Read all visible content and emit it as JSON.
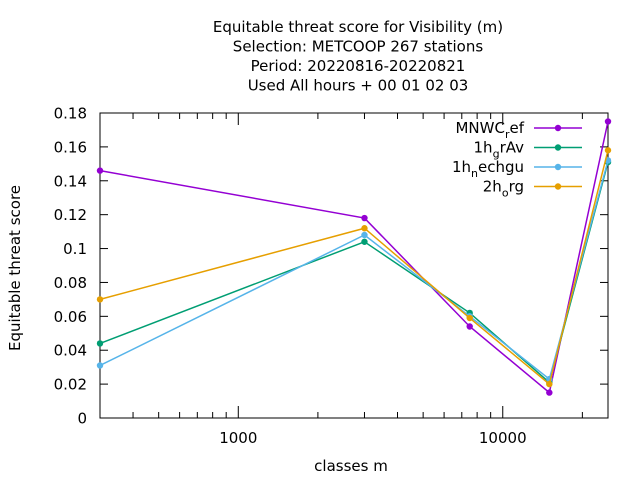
{
  "chart_data": {
    "type": "line",
    "title_lines": [
      "Equitable threat score  for Visibility (m)",
      "Selection: METCOOP    267 stations",
      "Period: 20220816-20220821",
      "Used  All hours  + 00 01 02 03"
    ],
    "xlabel": "classes m",
    "ylabel": "Equitable threat score",
    "x_scale": "log",
    "xlim": [
      300,
      25000
    ],
    "ylim": [
      0,
      0.18
    ],
    "x_ticks": [
      {
        "value": 1000,
        "label": "1000"
      },
      {
        "value": 10000,
        "label": "10000"
      }
    ],
    "y_ticks": [
      {
        "value": 0,
        "label": "0"
      },
      {
        "value": 0.02,
        "label": "0.02"
      },
      {
        "value": 0.04,
        "label": "0.04"
      },
      {
        "value": 0.06,
        "label": "0.06"
      },
      {
        "value": 0.08,
        "label": "0.08"
      },
      {
        "value": 0.1,
        "label": "0.1"
      },
      {
        "value": 0.12,
        "label": "0.12"
      },
      {
        "value": 0.14,
        "label": "0.14"
      },
      {
        "value": 0.16,
        "label": "0.16"
      },
      {
        "value": 0.18,
        "label": "0.18"
      }
    ],
    "grid": false,
    "legend_position": "top-right",
    "x": [
      300,
      3000,
      7500,
      15000,
      25000
    ],
    "series": [
      {
        "name": "MNWC_ref",
        "legend_main": "MNWC",
        "legend_sub": "r",
        "legend_tail": "ef",
        "color": "#9400d3",
        "values": [
          0.146,
          0.118,
          0.054,
          0.015,
          0.175
        ]
      },
      {
        "name": "1h_grAv",
        "legend_main": "1h",
        "legend_sub": "g",
        "legend_tail": "rAv",
        "color": "#009e73",
        "values": [
          0.044,
          0.104,
          0.062,
          0.021,
          0.151
        ]
      },
      {
        "name": "1h_nechgu",
        "legend_main": "1h",
        "legend_sub": "n",
        "legend_tail": "echgu",
        "color": "#56b4e9",
        "values": [
          0.031,
          0.108,
          0.06,
          0.023,
          0.152
        ]
      },
      {
        "name": "2h_org",
        "legend_main": "2h",
        "legend_sub": "o",
        "legend_tail": "rg",
        "color": "#e69f00",
        "values": [
          0.07,
          0.112,
          0.059,
          0.02,
          0.158
        ]
      }
    ]
  }
}
